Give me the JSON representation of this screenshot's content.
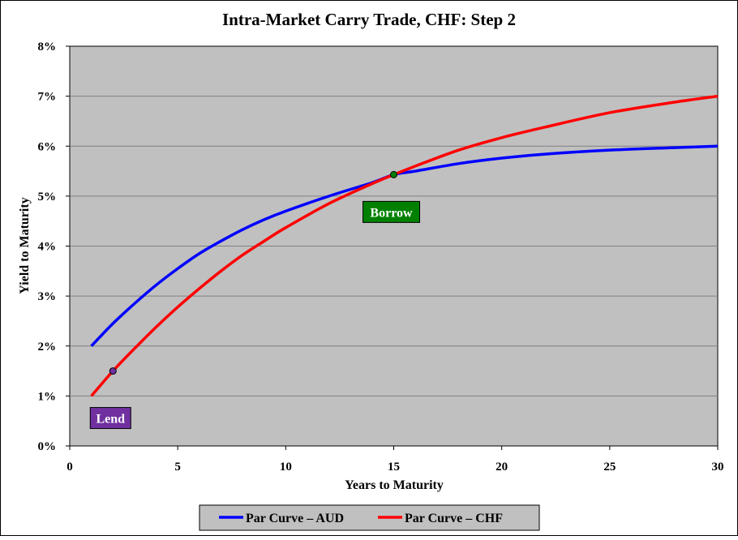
{
  "chart_data": {
    "type": "line",
    "title": "Intra-Market Carry Trade, CHF: Step 2",
    "xlabel": "Years to Maturity",
    "ylabel": "Yield to Maturity",
    "xlim": [
      0,
      30
    ],
    "ylim": [
      0,
      8
    ],
    "x_ticks": [
      "0",
      "5",
      "10",
      "15",
      "20",
      "25",
      "30"
    ],
    "y_ticks": [
      "0%",
      "1%",
      "2%",
      "3%",
      "4%",
      "5%",
      "6%",
      "7%",
      "8%"
    ],
    "grid": "horizontal",
    "plot_background": "#c0c0c0",
    "legend_position": "bottom",
    "series": [
      {
        "name": "Par Curve – AUD",
        "color": "#0000ff",
        "x": [
          1,
          2,
          3,
          4,
          5,
          6,
          7,
          8,
          9,
          10,
          12,
          14,
          15,
          16,
          18,
          20,
          22,
          25,
          28,
          30
        ],
        "values": [
          2.0,
          2.45,
          2.85,
          3.22,
          3.55,
          3.85,
          4.1,
          4.33,
          4.53,
          4.7,
          5.0,
          5.27,
          5.43,
          5.5,
          5.65,
          5.76,
          5.84,
          5.92,
          5.97,
          6.0
        ]
      },
      {
        "name": "Par Curve – CHF",
        "color": "#ff0000",
        "x": [
          1,
          2,
          3,
          4,
          5,
          6,
          7,
          8,
          9,
          10,
          12,
          14,
          15,
          16,
          18,
          20,
          22,
          25,
          28,
          30
        ],
        "values": [
          1.0,
          1.5,
          1.95,
          2.38,
          2.78,
          3.15,
          3.5,
          3.82,
          4.1,
          4.37,
          4.85,
          5.25,
          5.43,
          5.6,
          5.92,
          6.17,
          6.38,
          6.67,
          6.88,
          7.0
        ]
      }
    ],
    "annotations": [
      {
        "label": "Borrow",
        "x": 15,
        "y": 5.43,
        "marker_color": "#008000",
        "box_color": "#008000"
      },
      {
        "label": "Lend",
        "x": 2,
        "y": 1.5,
        "marker_color": "#7030a0",
        "box_color": "#7030a0"
      }
    ]
  }
}
